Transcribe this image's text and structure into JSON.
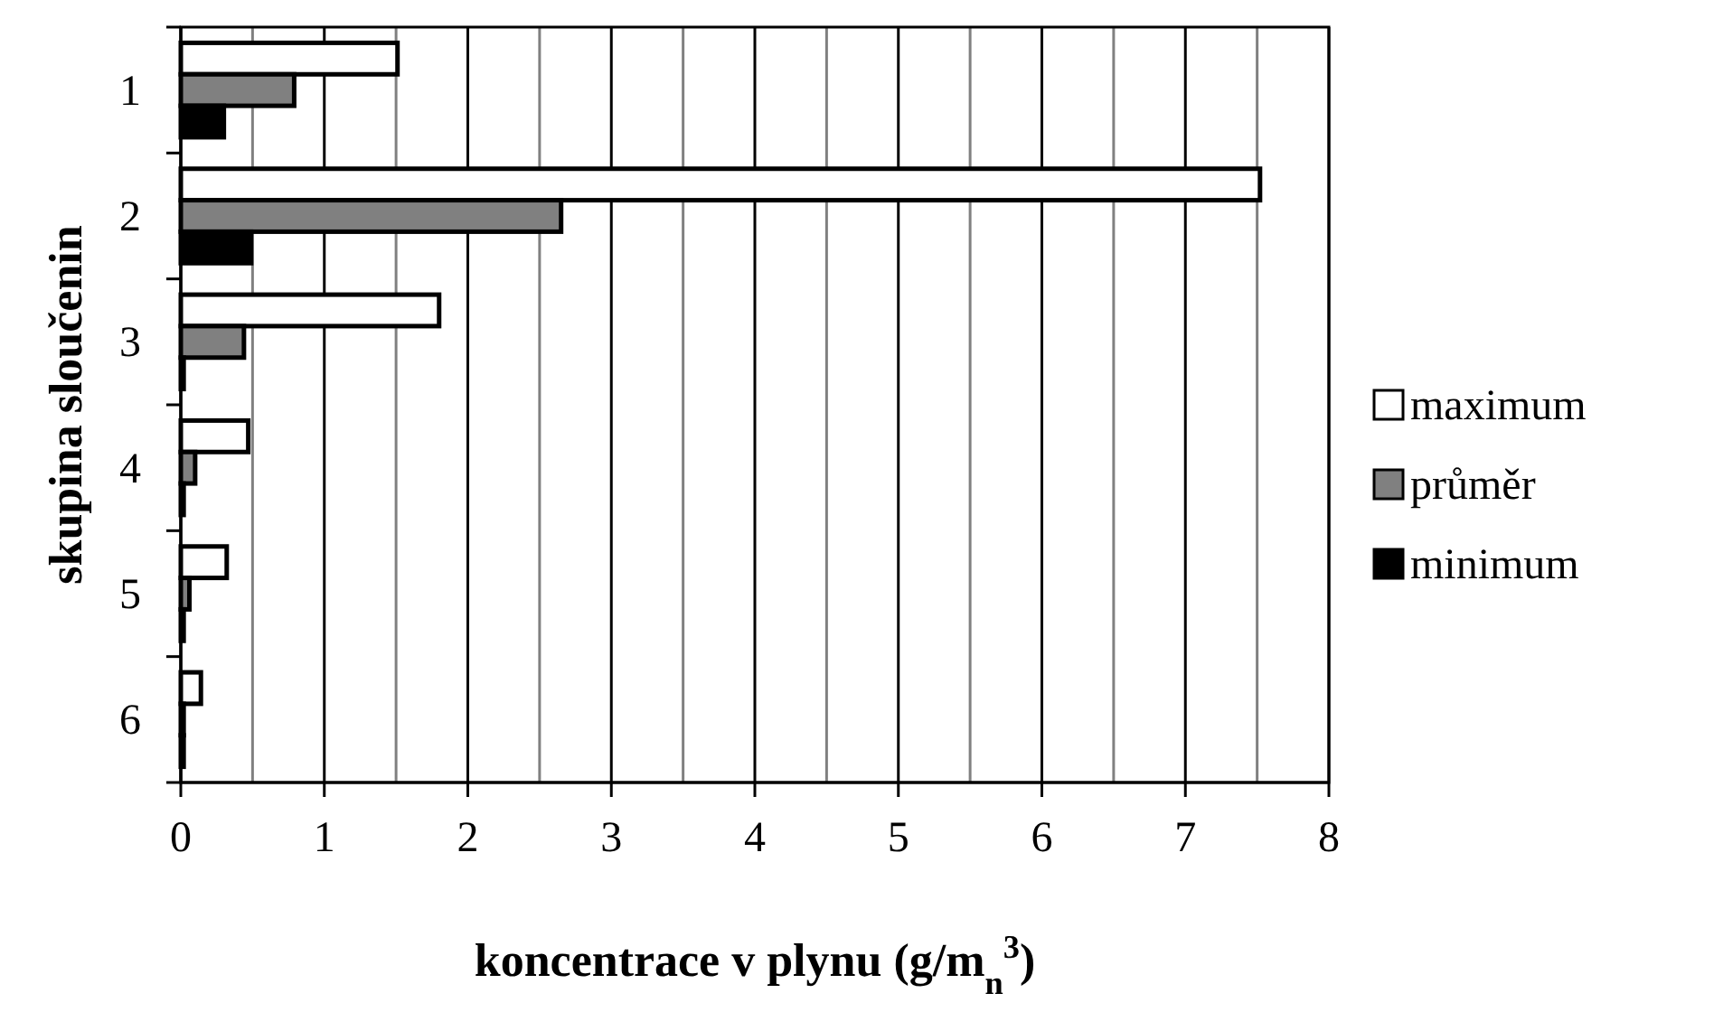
{
  "chart_data": {
    "type": "bar",
    "orientation": "horizontal",
    "xlabel": "koncentrace v plynu (g/m$_{n}$$^{3}$)",
    "ylabel": "skupina sloučenin",
    "categories": [
      "1",
      "2",
      "3",
      "4",
      "5",
      "6"
    ],
    "series": [
      {
        "name": "maximum",
        "color": "#ffffff",
        "values": [
          1.51,
          7.52,
          1.8,
          0.47,
          0.32,
          0.14
        ]
      },
      {
        "name": "průměr",
        "color": "#808080",
        "values": [
          0.79,
          2.65,
          0.44,
          0.1,
          0.06,
          0.02
        ]
      },
      {
        "name": "minimum",
        "color": "#000000",
        "values": [
          0.3,
          0.49,
          0.02,
          0.02,
          0.02,
          0.02
        ]
      }
    ],
    "xlim": [
      0,
      8
    ],
    "xticks": [
      0,
      {
        "value": 0.5,
        "label": null
      },
      1,
      {
        "value": 1.5,
        "label": null
      },
      2,
      {
        "value": 2.5,
        "label": null
      },
      3,
      {
        "value": 3.5,
        "label": null
      },
      4,
      {
        "value": 4.5,
        "label": null
      },
      5,
      {
        "value": 5.5,
        "label": null
      },
      6,
      {
        "value": 6.5,
        "label": null
      },
      7,
      {
        "value": 7.5,
        "label": null
      },
      8
    ],
    "grid": "x",
    "legend": "right"
  }
}
